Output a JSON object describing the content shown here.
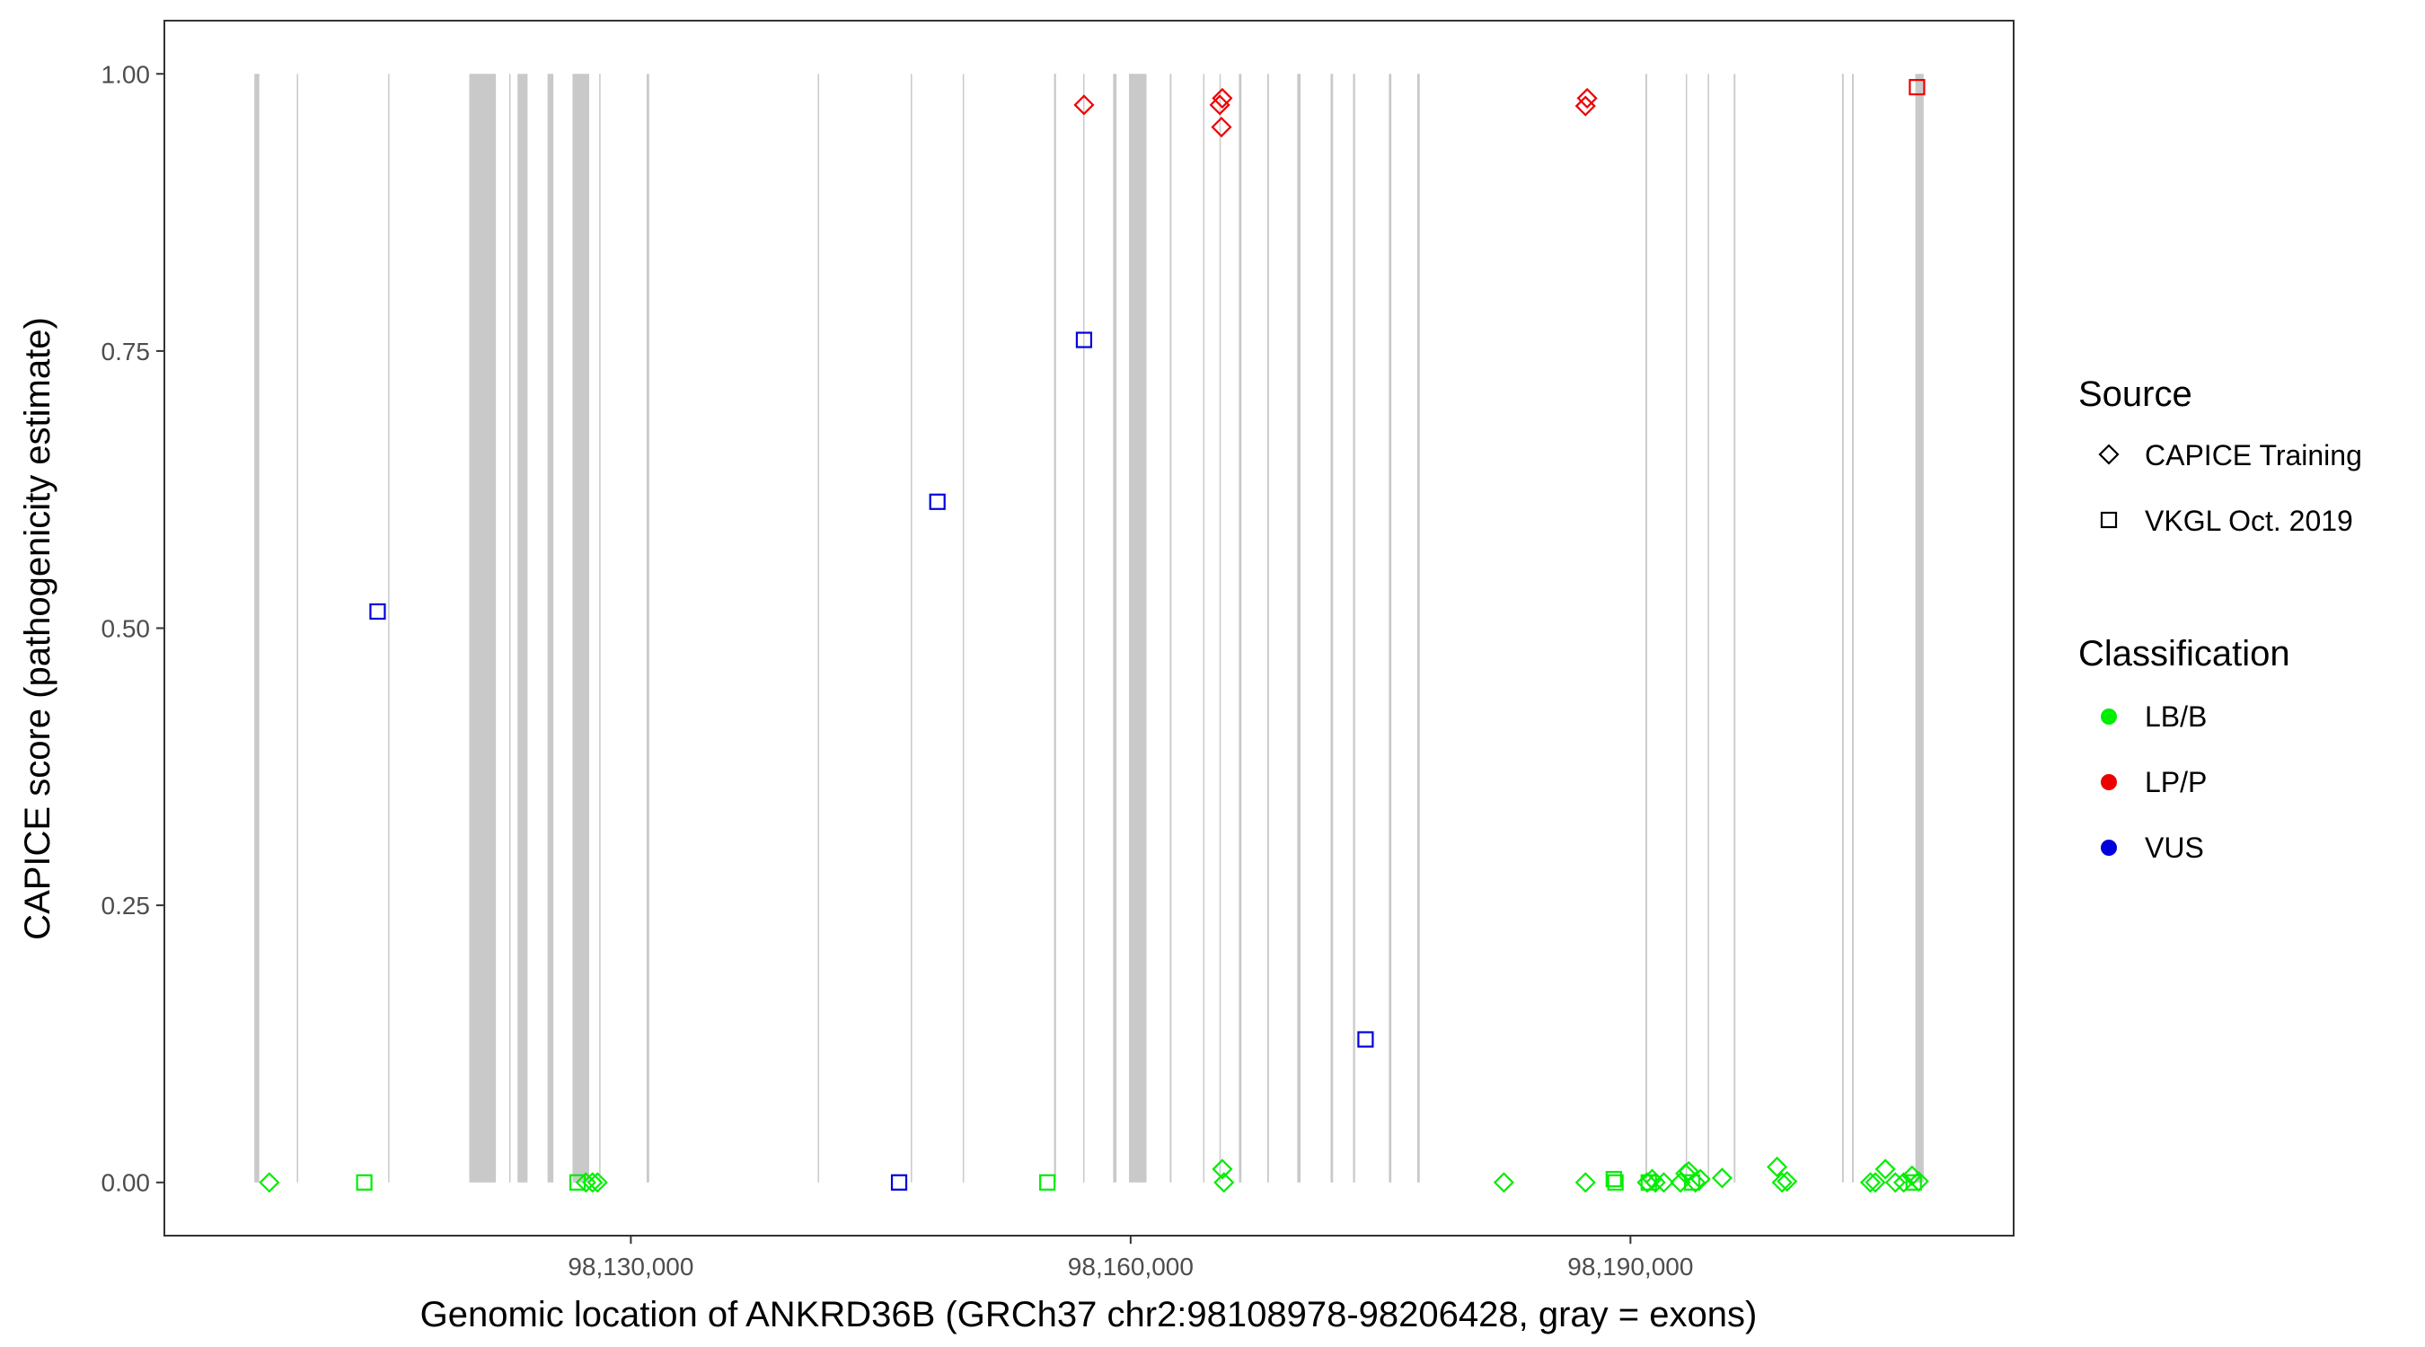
{
  "chart_data": {
    "type": "scatter",
    "title": "",
    "xlabel": "Genomic location of ANKRD36B (GRCh37 chr2:98108978-98206428, gray = exons)",
    "ylabel": "CAPICE score (pathogenicity estimate)",
    "xlim": [
      98102000,
      98213000
    ],
    "ylim": [
      -0.048,
      1.048
    ],
    "x_ticks": [
      98130000,
      98160000,
      98190000
    ],
    "x_tick_labels": [
      "98,130,000",
      "98,160,000",
      "98,190,000"
    ],
    "y_ticks": [
      0,
      0.25,
      0.5,
      0.75,
      1
    ],
    "y_tick_labels": [
      "0.00",
      "0.25",
      "0.50",
      "0.75",
      "1.00"
    ],
    "grid": false,
    "exons": [
      [
        98107400,
        98107700
      ],
      [
        98109950,
        98110000
      ],
      [
        98115430,
        98115470
      ],
      [
        98120300,
        98121900
      ],
      [
        98122700,
        98122760
      ],
      [
        98123200,
        98123800
      ],
      [
        98125000,
        98125350
      ],
      [
        98126500,
        98127500
      ],
      [
        98128100,
        98128150
      ],
      [
        98130950,
        98131100
      ],
      [
        98141220,
        98141280
      ],
      [
        98146800,
        98146880
      ],
      [
        98149920,
        98149980
      ],
      [
        98155400,
        98155520
      ],
      [
        98157150,
        98157210
      ],
      [
        98158950,
        98159150
      ],
      [
        98159900,
        98160950
      ],
      [
        98162350,
        98162450
      ],
      [
        98164350,
        98164410
      ],
      [
        98165330,
        98165390
      ],
      [
        98166500,
        98166650
      ],
      [
        98168200,
        98168300
      ],
      [
        98170000,
        98170200
      ],
      [
        98172000,
        98172150
      ],
      [
        98173350,
        98173470
      ],
      [
        98175500,
        98175650
      ],
      [
        98177200,
        98177350
      ],
      [
        98190900,
        98191000
      ],
      [
        98193320,
        98193380
      ],
      [
        98194640,
        98194700
      ],
      [
        98196200,
        98196300
      ],
      [
        98202700,
        98202800
      ],
      [
        98203300,
        98203400
      ],
      [
        98207100,
        98207600
      ]
    ],
    "legend": {
      "position": "right",
      "source_title": "Source",
      "source_entries": [
        {
          "label": "CAPICE Training",
          "shape": "diamond"
        },
        {
          "label": "VKGL Oct. 2019",
          "shape": "square"
        }
      ],
      "class_title": "Classification",
      "class_entries": [
        {
          "label": "LB/B",
          "color": "#00EE00"
        },
        {
          "label": "LP/P",
          "color": "#EE0000"
        },
        {
          "label": "VUS",
          "color": "#0000DD"
        }
      ]
    },
    "series": [
      {
        "source": "CAPICE Training",
        "shape": "diamond",
        "class": "LB/B",
        "color": "#00EE00",
        "x": [
          98108300,
          98127300,
          98127700,
          98128000,
          98165500,
          98165600,
          98182400,
          98187300,
          98191000,
          98191300,
          98191500,
          98192000,
          98193000,
          98193300,
          98193500,
          98193900,
          98194200,
          98195500,
          98198800,
          98199100,
          98199400,
          98204400,
          98204700,
          98205300,
          98205900,
          98206400,
          98206900,
          98207300
        ],
        "y": [
          0,
          0,
          0,
          0,
          0.012,
          0,
          0,
          0,
          0,
          0.003,
          0,
          0,
          0,
          0.008,
          0.01,
          0,
          0.003,
          0.004,
          0.014,
          0,
          0.001,
          0,
          0,
          0.012,
          0,
          0,
          0.006,
          0.001
        ]
      },
      {
        "source": "CAPICE Training",
        "shape": "diamond",
        "class": "LP/P",
        "color": "#EE0000",
        "x": [
          98157200,
          98165350,
          98165500,
          98165450,
          98187400,
          98187300
        ],
        "y": [
          0.972,
          0.972,
          0.978,
          0.952,
          0.978,
          0.971
        ]
      },
      {
        "source": "VKGL Oct. 2019",
        "shape": "square",
        "class": "LB/B",
        "color": "#00EE00",
        "x": [
          98114000,
          98126800,
          98155000,
          98189000,
          98189100,
          98191100,
          98193700,
          98207000
        ],
        "y": [
          0,
          0,
          0,
          0.003,
          0,
          0,
          0,
          0
        ]
      },
      {
        "source": "VKGL Oct. 2019",
        "shape": "square",
        "class": "LP/P",
        "color": "#EE0000",
        "x": [
          98207200
        ],
        "y": [
          0.988
        ]
      },
      {
        "source": "VKGL Oct. 2019",
        "shape": "square",
        "class": "VUS",
        "color": "#0000DD",
        "x": [
          98114800,
          98148400,
          98146100,
          98157200,
          98174100
        ],
        "y": [
          0.515,
          0.614,
          0,
          0.76,
          0.129
        ]
      }
    ]
  }
}
